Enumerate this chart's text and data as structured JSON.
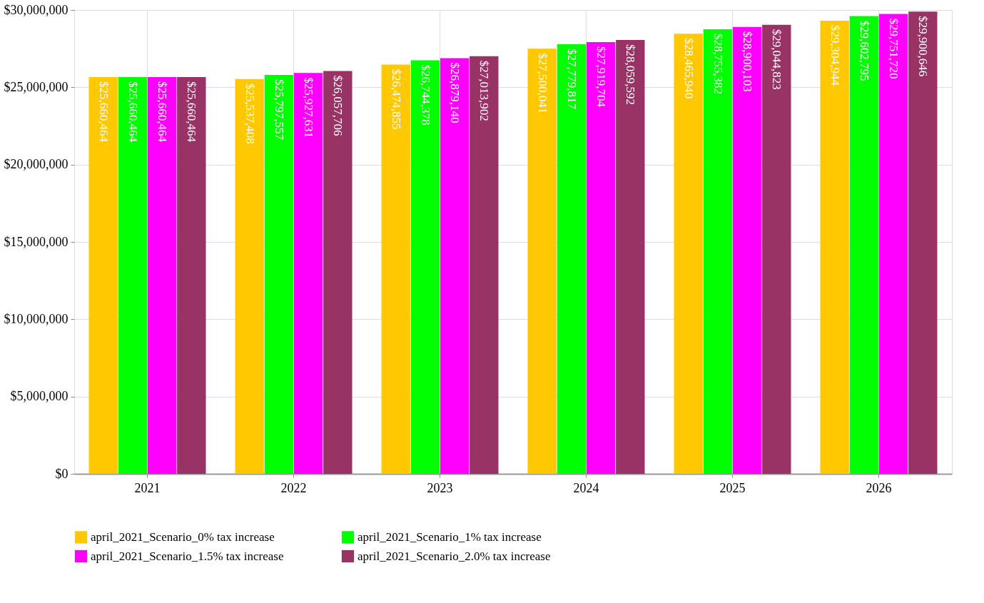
{
  "chart_data": {
    "type": "bar",
    "categories": [
      "2021",
      "2022",
      "2023",
      "2024",
      "2025",
      "2026"
    ],
    "series": [
      {
        "name": "april_2021_Scenario_0% tax increase",
        "color": "#ffc800",
        "values": [
          25660464,
          25537408,
          26474855,
          27500041,
          28465940,
          29304944
        ],
        "value_labels": [
          "$25,660,464",
          "$25,537,408",
          "$26,474,855",
          "$27,500,041",
          "$28,465,940",
          "$29,304,944"
        ]
      },
      {
        "name": "april_2021_Scenario_1% tax increase",
        "color": "#00ff00",
        "values": [
          25660464,
          25797557,
          26744378,
          27779817,
          28755382,
          29602795
        ],
        "value_labels": [
          "$25,660,464",
          "$25,797,557",
          "$26,744,378",
          "$27,779,817",
          "$28,755,382",
          "$29,602,795"
        ]
      },
      {
        "name": "april_2021_Scenario_1.5% tax increase",
        "color": "#ff00ff",
        "values": [
          25660464,
          25927631,
          26879140,
          27919704,
          28900103,
          29751720
        ],
        "value_labels": [
          "$25,660,464",
          "$25,927,631",
          "$26,879,140",
          "$27,919,704",
          "$28,900,103",
          "$29,751,720"
        ]
      },
      {
        "name": "april_2021_Scenario_2.0% tax increase",
        "color": "#993366",
        "values": [
          25660464,
          26057706,
          27013902,
          28059592,
          29044823,
          29900646
        ],
        "value_labels": [
          "$25,660,464",
          "$26,057,706",
          "$27,013,902",
          "$28,059,592",
          "$29,044,823",
          "$29,900,646"
        ]
      }
    ],
    "ylim": [
      0,
      30000000
    ],
    "yticks": [
      {
        "value": 0,
        "label": "$0"
      },
      {
        "value": 5000000,
        "label": "$5,000,000"
      },
      {
        "value": 10000000,
        "label": "$10,000,000"
      },
      {
        "value": 15000000,
        "label": "$15,000,000"
      },
      {
        "value": 20000000,
        "label": "$20,000,000"
      },
      {
        "value": 25000000,
        "label": "$25,000,000"
      },
      {
        "value": 30000000,
        "label": "$30,000,000"
      }
    ],
    "grid": true,
    "legend": "bottom"
  }
}
